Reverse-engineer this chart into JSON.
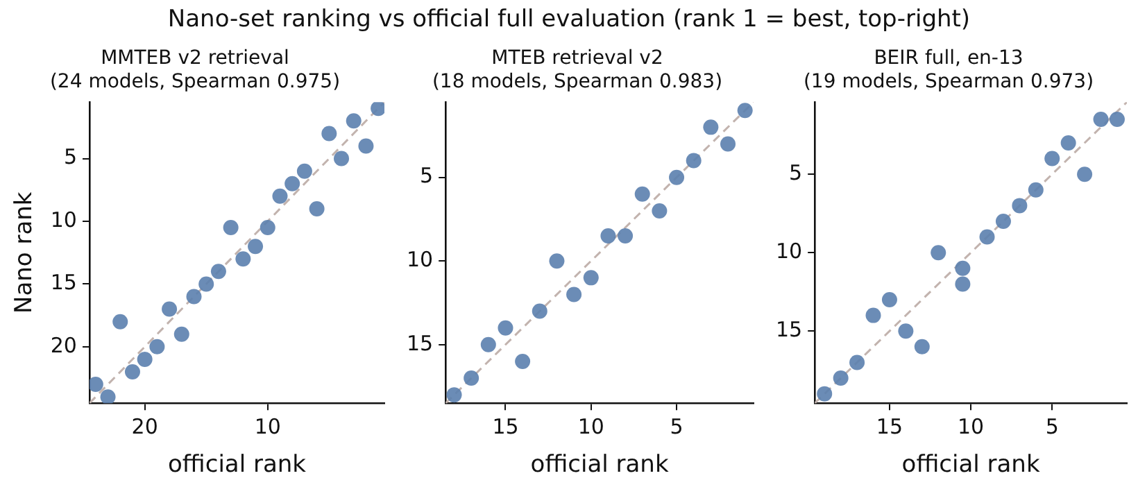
{
  "chart_data": [
    {
      "type": "scatter",
      "title": "Nano-set ranking vs official full evaluation (rank 1 = best, top-right)",
      "subtitle": "MMTEB v2 retrieval\n(24 models, Spearman 0.975)",
      "xlabel": "official rank",
      "ylabel": "Nano rank",
      "xlim": [
        24.5,
        0.5
      ],
      "ylim": [
        24.5,
        0.5
      ],
      "xticks": [
        20,
        10
      ],
      "yticks": [
        5,
        10,
        15,
        20
      ],
      "grid": false,
      "legend": false,
      "marker": "circle",
      "series": [
        {
          "type": "line",
          "x": [
            24.5,
            0.5
          ],
          "values": [
            24.5,
            0.5
          ],
          "color": "#c2b3ae",
          "line_style": "dashed",
          "marker": "none"
        },
        {
          "color": "#5b7fae",
          "x": [
            24,
            23,
            22,
            21,
            20,
            19,
            18,
            17,
            16,
            15,
            14,
            13,
            12,
            11,
            10,
            9,
            8,
            7,
            6,
            5,
            4,
            3,
            2,
            1
          ],
          "values": [
            23,
            24,
            18,
            22,
            21,
            20,
            17,
            19,
            16,
            15,
            14,
            10.5,
            13,
            12,
            10.5,
            8,
            7,
            6,
            9,
            3,
            5,
            2,
            4,
            1
          ]
        }
      ]
    },
    {
      "type": "scatter",
      "subtitle": "MTEB retrieval v2\n(18 models, Spearman 0.983)",
      "xlabel": "official rank",
      "xlim": [
        18.5,
        0.5
      ],
      "ylim": [
        18.5,
        0.5
      ],
      "xticks": [
        15,
        10,
        5
      ],
      "yticks": [
        5,
        10,
        15
      ],
      "grid": false,
      "legend": false,
      "marker": "circle",
      "series": [
        {
          "type": "line",
          "x": [
            18.5,
            0.5
          ],
          "values": [
            18.5,
            0.5
          ],
          "color": "#c2b3ae",
          "line_style": "dashed",
          "marker": "none"
        },
        {
          "color": "#5b7fae",
          "x": [
            18,
            17,
            16,
            15,
            14,
            13,
            12,
            11,
            10,
            9,
            8,
            7,
            6,
            5,
            4,
            3,
            2,
            1
          ],
          "values": [
            18,
            17,
            15,
            14,
            16,
            13,
            10,
            12,
            11,
            8.5,
            8.5,
            6,
            7,
            5,
            4,
            2,
            3,
            1
          ]
        }
      ]
    },
    {
      "type": "scatter",
      "subtitle": "BEIR full, en-13\n(19 models, Spearman 0.973)",
      "xlabel": "official rank",
      "xlim": [
        19.6,
        0.4
      ],
      "ylim": [
        19.6,
        0.4
      ],
      "xticks": [
        15,
        10,
        5
      ],
      "yticks": [
        5,
        10,
        15
      ],
      "grid": false,
      "legend": false,
      "marker": "circle",
      "series": [
        {
          "type": "line",
          "x": [
            19.6,
            0.4
          ],
          "values": [
            19.6,
            0.4
          ],
          "color": "#c2b3ae",
          "line_style": "dashed",
          "marker": "none"
        },
        {
          "color": "#5b7fae",
          "x": [
            19,
            18,
            17,
            16,
            15,
            14,
            13,
            12,
            10.5,
            10.5,
            9,
            8,
            7,
            6,
            5,
            4,
            3,
            2,
            1
          ],
          "values": [
            19,
            18,
            17,
            14,
            13,
            15,
            16,
            10,
            11,
            12,
            9,
            8,
            7,
            6,
            4,
            3,
            5,
            1.5,
            1.5
          ]
        }
      ]
    }
  ]
}
